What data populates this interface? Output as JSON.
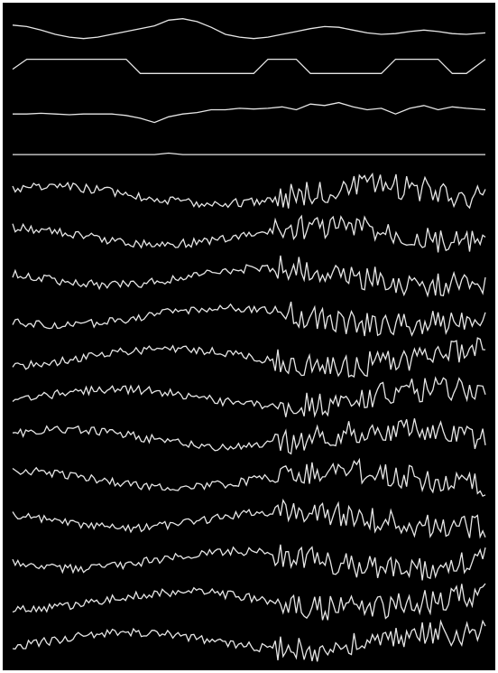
{
  "chart_data": {
    "type": "line",
    "title": "",
    "xlabel": "",
    "ylabel": "",
    "axes_visible": false,
    "grid": false,
    "legend": "none",
    "background_color": "#000000",
    "frame_color": "#ffffff",
    "trace_color": "#e6e6e6",
    "x": [
      0,
      0.03,
      0.06,
      0.09,
      0.12,
      0.15,
      0.18,
      0.21,
      0.24,
      0.27,
      0.3,
      0.33,
      0.36,
      0.39,
      0.42,
      0.45,
      0.48,
      0.51,
      0.54,
      0.57,
      0.6,
      0.63,
      0.66,
      0.69,
      0.72,
      0.75,
      0.78,
      0.81,
      0.84,
      0.87,
      0.9,
      0.93,
      0.96,
      1.0
    ],
    "series": [
      {
        "values": [
          0.55,
          0.45,
          0.2,
          -0.1,
          -0.3,
          -0.4,
          -0.3,
          -0.1,
          0.1,
          0.3,
          0.5,
          0.9,
          1.0,
          0.8,
          0.4,
          -0.1,
          -0.3,
          -0.4,
          -0.3,
          -0.1,
          0.1,
          0.3,
          0.45,
          0.4,
          0.2,
          0.0,
          -0.1,
          -0.05,
          0.1,
          0.2,
          0.1,
          -0.05,
          -0.1,
          0.0
        ]
      },
      {
        "values": [
          0.3,
          1.0,
          1.0,
          1.0,
          1.0,
          1.0,
          1.0,
          1.0,
          1.0,
          0.0,
          0.0,
          0.0,
          0.0,
          0.0,
          0.0,
          0.0,
          0.0,
          0.0,
          1.0,
          1.0,
          1.0,
          0.0,
          0.0,
          0.0,
          0.0,
          0.0,
          0.0,
          1.0,
          1.0,
          1.0,
          1.0,
          0.0,
          0.0,
          1.0
        ]
      },
      {
        "values": [
          0.0,
          0.0,
          0.05,
          0.0,
          -0.05,
          0.0,
          0.0,
          0.0,
          -0.1,
          -0.3,
          -0.6,
          -0.2,
          0.0,
          0.1,
          0.3,
          0.3,
          0.4,
          0.35,
          0.4,
          0.5,
          0.3,
          0.7,
          0.6,
          0.8,
          0.5,
          0.3,
          0.4,
          0.0,
          0.4,
          0.6,
          0.3,
          0.5,
          0.4,
          0.3
        ]
      },
      {
        "values": [
          0.0,
          0.0,
          0.0,
          0.0,
          0.0,
          0.0,
          0.0,
          0.0,
          0.0,
          0.0,
          0.0,
          0.1,
          0.0,
          0.0,
          0.0,
          0.0,
          0.0,
          0.0,
          0.0,
          0.0,
          0.0,
          0.0,
          0.0,
          0.0,
          0.0,
          0.0,
          0.0,
          0.0,
          0.0,
          0.0,
          0.0,
          0.0,
          0.0,
          0.0
        ]
      }
    ]
  }
}
